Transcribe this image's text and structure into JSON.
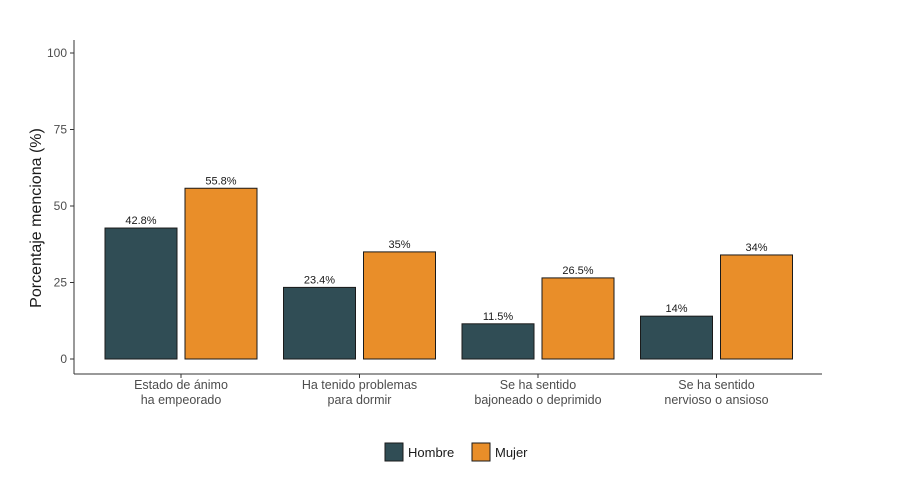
{
  "chart_data": {
    "type": "bar",
    "title": "",
    "xlabel": "",
    "ylabel": "Porcentaje menciona (%)",
    "ylim": [
      0,
      100
    ],
    "yticks": [
      0,
      25,
      50,
      75,
      100
    ],
    "grid": false,
    "legend_position": "bottom",
    "categories": [
      [
        "Estado de ánimo",
        "ha empeorado"
      ],
      [
        "Ha tenido problemas",
        "para dormir"
      ],
      [
        "Se ha sentido",
        "bajoneado o deprimido"
      ],
      [
        "Se ha sentido",
        "nervioso  o ansioso"
      ]
    ],
    "series": [
      {
        "name": "Hombre",
        "color": "#304d55",
        "values": [
          42.8,
          23.4,
          11.5,
          14
        ],
        "labels": [
          "42.8%",
          "23.4%",
          "11.5%",
          "14%"
        ]
      },
      {
        "name": "Mujer",
        "color": "#e98e29",
        "values": [
          55.8,
          35,
          26.5,
          34
        ],
        "labels": [
          "55.8%",
          "35%",
          "26.5%",
          "34%"
        ]
      }
    ]
  }
}
